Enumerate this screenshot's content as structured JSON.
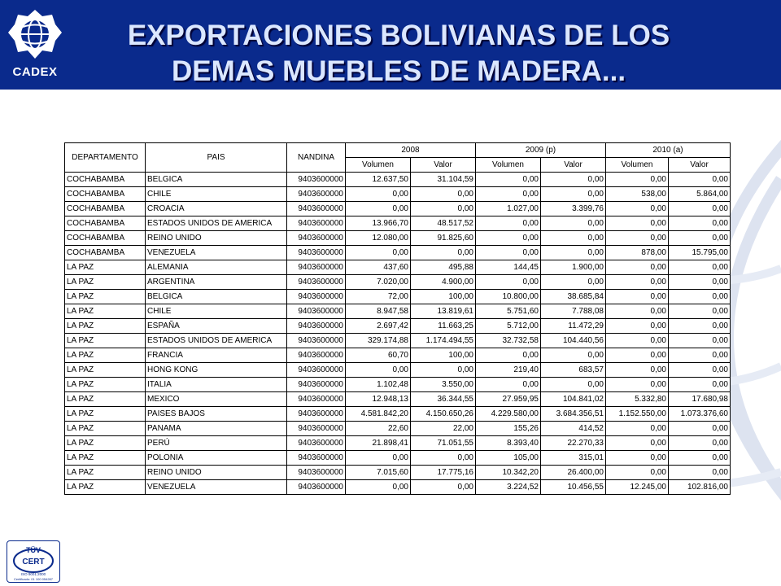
{
  "header": {
    "logo_text": "CADEX",
    "title_line1": "EXPORTACIONES BOLIVIANAS DE LOS",
    "title_line2": "DEMAS MUEBLES DE MADERA..."
  },
  "table": {
    "col_departamento": "DEPARTAMENTO",
    "col_pais": "PAIS",
    "col_nandina": "NANDINA",
    "years": [
      "2008",
      "2009 (p)",
      "2010 (a)"
    ],
    "sub_volumen": "Volumen",
    "sub_valor": "Valor",
    "rows": [
      [
        "COCHABAMBA",
        "BELGICA",
        "9403600000",
        "12.637,50",
        "31.104,59",
        "0,00",
        "0,00",
        "0,00",
        "0,00"
      ],
      [
        "COCHABAMBA",
        "CHILE",
        "9403600000",
        "0,00",
        "0,00",
        "0,00",
        "0,00",
        "538,00",
        "5.864,00"
      ],
      [
        "COCHABAMBA",
        "CROACIA",
        "9403600000",
        "0,00",
        "0,00",
        "1.027,00",
        "3.399,76",
        "0,00",
        "0,00"
      ],
      [
        "COCHABAMBA",
        "ESTADOS UNIDOS DE AMERICA",
        "9403600000",
        "13.966,70",
        "48.517,52",
        "0,00",
        "0,00",
        "0,00",
        "0,00"
      ],
      [
        "COCHABAMBA",
        "REINO UNIDO",
        "9403600000",
        "12.080,00",
        "91.825,60",
        "0,00",
        "0,00",
        "0,00",
        "0,00"
      ],
      [
        "COCHABAMBA",
        "VENEZUELA",
        "9403600000",
        "0,00",
        "0,00",
        "0,00",
        "0,00",
        "878,00",
        "15.795,00"
      ],
      [
        "LA PAZ",
        "ALEMANIA",
        "9403600000",
        "437,60",
        "495,88",
        "144,45",
        "1.900,00",
        "0,00",
        "0,00"
      ],
      [
        "LA PAZ",
        "ARGENTINA",
        "9403600000",
        "7.020,00",
        "4.900,00",
        "0,00",
        "0,00",
        "0,00",
        "0,00"
      ],
      [
        "LA PAZ",
        "BELGICA",
        "9403600000",
        "72,00",
        "100,00",
        "10.800,00",
        "38.685,84",
        "0,00",
        "0,00"
      ],
      [
        "LA PAZ",
        "CHILE",
        "9403600000",
        "8.947,58",
        "13.819,61",
        "5.751,60",
        "7.788,08",
        "0,00",
        "0,00"
      ],
      [
        "LA PAZ",
        "ESPAÑA",
        "9403600000",
        "2.697,42",
        "11.663,25",
        "5.712,00",
        "11.472,29",
        "0,00",
        "0,00"
      ],
      [
        "LA PAZ",
        "ESTADOS UNIDOS DE AMERICA",
        "9403600000",
        "329.174,88",
        "1.174.494,55",
        "32.732,58",
        "104.440,56",
        "0,00",
        "0,00"
      ],
      [
        "LA PAZ",
        "FRANCIA",
        "9403600000",
        "60,70",
        "100,00",
        "0,00",
        "0,00",
        "0,00",
        "0,00"
      ],
      [
        "LA PAZ",
        "HONG KONG",
        "9403600000",
        "0,00",
        "0,00",
        "219,40",
        "683,57",
        "0,00",
        "0,00"
      ],
      [
        "LA PAZ",
        "ITALIA",
        "9403600000",
        "1.102,48",
        "3.550,00",
        "0,00",
        "0,00",
        "0,00",
        "0,00"
      ],
      [
        "LA PAZ",
        "MEXICO",
        "9403600000",
        "12.948,13",
        "36.344,55",
        "27.959,95",
        "104.841,02",
        "5.332,80",
        "17.680,98"
      ],
      [
        "LA PAZ",
        "PAISES BAJOS",
        "9403600000",
        "4.581.842,20",
        "4.150.650,26",
        "4.229.580,00",
        "3.684.356,51",
        "1.152.550,00",
        "1.073.376,60"
      ],
      [
        "LA PAZ",
        "PANAMA",
        "9403600000",
        "22,60",
        "22,00",
        "155,26",
        "414,52",
        "0,00",
        "0,00"
      ],
      [
        "LA PAZ",
        "PERÚ",
        "9403600000",
        "21.898,41",
        "71.051,55",
        "8.393,40",
        "22.270,33",
        "0,00",
        "0,00"
      ],
      [
        "LA PAZ",
        "POLONIA",
        "9403600000",
        "0,00",
        "0,00",
        "105,00",
        "315,01",
        "0,00",
        "0,00"
      ],
      [
        "LA PAZ",
        "REINO UNIDO",
        "9403600000",
        "7.015,60",
        "17.775,16",
        "10.342,20",
        "26.400,00",
        "0,00",
        "0,00"
      ],
      [
        "LA PAZ",
        "VENEZUELA",
        "9403600000",
        "0,00",
        "0,00",
        "3.224,52",
        "10.456,55",
        "12.245,00",
        "102.816,00"
      ]
    ]
  },
  "badge": {
    "brand": "TÜV",
    "line1": "CERT",
    "line2": "ISO 9001:2000",
    "line3": "Certificado: 01 100 054287"
  },
  "colors": {
    "header_bg": "#0a2a8c",
    "title_text": "#dbe7ff"
  }
}
